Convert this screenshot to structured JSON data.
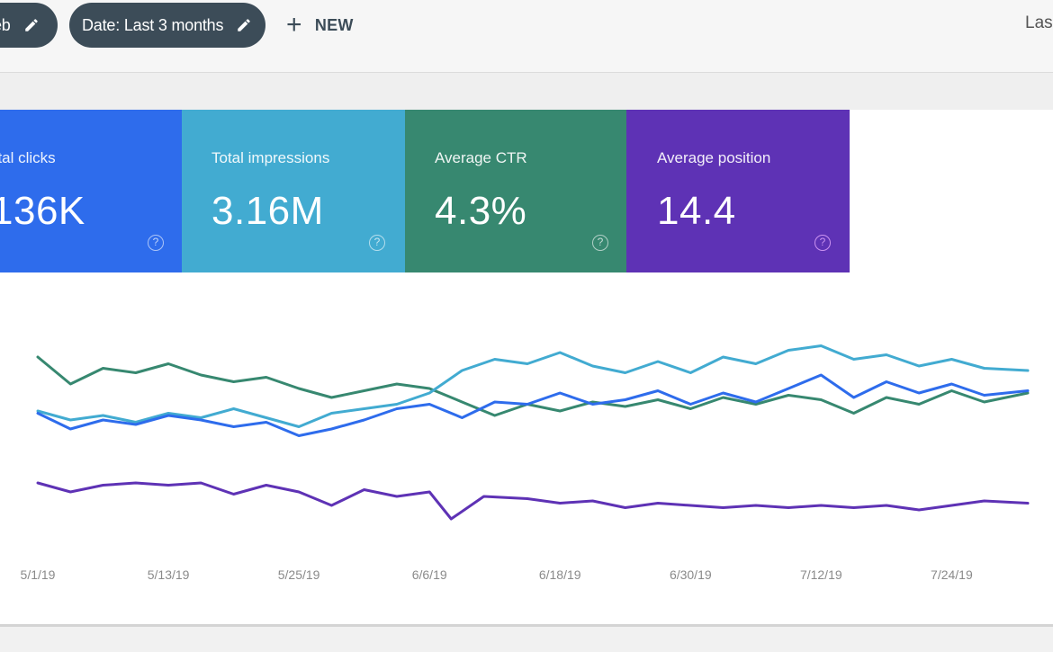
{
  "filters": {
    "search_type_chip": "eb",
    "date_chip": "Date: Last 3 months",
    "new_label": "NEW",
    "right_text": "Las"
  },
  "metrics": {
    "clicks": {
      "label": "otal clicks",
      "value": "136K",
      "help": "?"
    },
    "impressions": {
      "label": "Total impressions",
      "value": "3.16M",
      "help": "?"
    },
    "ctr": {
      "label": "Average CTR",
      "value": "4.3%",
      "help": "?"
    },
    "position": {
      "label": "Average position",
      "value": "14.4",
      "help": "?"
    }
  },
  "colors": {
    "clicks": "#2e6cec",
    "impressions": "#42abd1",
    "ctr": "#378870",
    "position": "#5e32b5",
    "chip_bg": "#3c4c58"
  },
  "chart_data": {
    "type": "line",
    "x_tick_labels": [
      "5/1/19",
      "5/13/19",
      "5/25/19",
      "6/6/19",
      "6/18/19",
      "6/30/19",
      "7/12/19",
      "7/24/19"
    ],
    "x_ticks": [
      "2019-05-01",
      "2019-05-13",
      "2019-05-25",
      "2019-06-06",
      "2019-06-18",
      "2019-06-30",
      "2019-07-12",
      "2019-07-24"
    ],
    "x_range": [
      "2019-05-01",
      "2019-07-31"
    ],
    "y_axis_shown": false,
    "grid": false,
    "series": [
      {
        "metric": "ctr",
        "color": "#378870",
        "points": [
          [
            "2019-05-01",
            78
          ],
          [
            "2019-05-04",
            66
          ],
          [
            "2019-05-07",
            73
          ],
          [
            "2019-05-10",
            71
          ],
          [
            "2019-05-13",
            75
          ],
          [
            "2019-05-16",
            70
          ],
          [
            "2019-05-19",
            67
          ],
          [
            "2019-05-22",
            69
          ],
          [
            "2019-05-25",
            64
          ],
          [
            "2019-05-28",
            60
          ],
          [
            "2019-05-31",
            63
          ],
          [
            "2019-06-03",
            66
          ],
          [
            "2019-06-06",
            64
          ],
          [
            "2019-06-09",
            58
          ],
          [
            "2019-06-12",
            52
          ],
          [
            "2019-06-15",
            57
          ],
          [
            "2019-06-18",
            54
          ],
          [
            "2019-06-21",
            58
          ],
          [
            "2019-06-24",
            56
          ],
          [
            "2019-06-27",
            59
          ],
          [
            "2019-06-30",
            55
          ],
          [
            "2019-07-03",
            60
          ],
          [
            "2019-07-06",
            57
          ],
          [
            "2019-07-09",
            61
          ],
          [
            "2019-07-12",
            59
          ],
          [
            "2019-07-15",
            53
          ],
          [
            "2019-07-18",
            60
          ],
          [
            "2019-07-21",
            57
          ],
          [
            "2019-07-24",
            63
          ],
          [
            "2019-07-27",
            58
          ],
          [
            "2019-07-31",
            62
          ]
        ]
      },
      {
        "metric": "impressions",
        "color": "#42abd1",
        "points": [
          [
            "2019-05-01",
            54
          ],
          [
            "2019-05-04",
            50
          ],
          [
            "2019-05-07",
            52
          ],
          [
            "2019-05-10",
            49
          ],
          [
            "2019-05-13",
            53
          ],
          [
            "2019-05-16",
            51
          ],
          [
            "2019-05-19",
            55
          ],
          [
            "2019-05-22",
            51
          ],
          [
            "2019-05-25",
            47
          ],
          [
            "2019-05-28",
            53
          ],
          [
            "2019-05-31",
            55
          ],
          [
            "2019-06-03",
            57
          ],
          [
            "2019-06-06",
            62
          ],
          [
            "2019-06-09",
            72
          ],
          [
            "2019-06-12",
            77
          ],
          [
            "2019-06-15",
            75
          ],
          [
            "2019-06-18",
            80
          ],
          [
            "2019-06-21",
            74
          ],
          [
            "2019-06-24",
            71
          ],
          [
            "2019-06-27",
            76
          ],
          [
            "2019-06-30",
            71
          ],
          [
            "2019-07-03",
            78
          ],
          [
            "2019-07-06",
            75
          ],
          [
            "2019-07-09",
            81
          ],
          [
            "2019-07-12",
            83
          ],
          [
            "2019-07-15",
            77
          ],
          [
            "2019-07-18",
            79
          ],
          [
            "2019-07-21",
            74
          ],
          [
            "2019-07-24",
            77
          ],
          [
            "2019-07-27",
            73
          ],
          [
            "2019-07-31",
            72
          ]
        ]
      },
      {
        "metric": "clicks",
        "color": "#2e6cec",
        "points": [
          [
            "2019-05-01",
            53
          ],
          [
            "2019-05-04",
            46
          ],
          [
            "2019-05-07",
            50
          ],
          [
            "2019-05-10",
            48
          ],
          [
            "2019-05-13",
            52
          ],
          [
            "2019-05-16",
            50
          ],
          [
            "2019-05-19",
            47
          ],
          [
            "2019-05-22",
            49
          ],
          [
            "2019-05-25",
            43
          ],
          [
            "2019-05-28",
            46
          ],
          [
            "2019-05-31",
            50
          ],
          [
            "2019-06-03",
            55
          ],
          [
            "2019-06-06",
            57
          ],
          [
            "2019-06-09",
            51
          ],
          [
            "2019-06-12",
            58
          ],
          [
            "2019-06-15",
            57
          ],
          [
            "2019-06-18",
            62
          ],
          [
            "2019-06-21",
            57
          ],
          [
            "2019-06-24",
            59
          ],
          [
            "2019-06-27",
            63
          ],
          [
            "2019-06-30",
            57
          ],
          [
            "2019-07-03",
            62
          ],
          [
            "2019-07-06",
            58
          ],
          [
            "2019-07-09",
            64
          ],
          [
            "2019-07-12",
            70
          ],
          [
            "2019-07-15",
            60
          ],
          [
            "2019-07-18",
            67
          ],
          [
            "2019-07-21",
            62
          ],
          [
            "2019-07-24",
            66
          ],
          [
            "2019-07-27",
            61
          ],
          [
            "2019-07-31",
            63
          ]
        ]
      },
      {
        "metric": "position",
        "color": "#5e32b5",
        "points": [
          [
            "2019-05-01",
            22
          ],
          [
            "2019-05-04",
            18
          ],
          [
            "2019-05-07",
            21
          ],
          [
            "2019-05-10",
            22
          ],
          [
            "2019-05-13",
            21
          ],
          [
            "2019-05-16",
            22
          ],
          [
            "2019-05-19",
            17
          ],
          [
            "2019-05-22",
            21
          ],
          [
            "2019-05-25",
            18
          ],
          [
            "2019-05-28",
            12
          ],
          [
            "2019-05-31",
            19
          ],
          [
            "2019-06-03",
            16
          ],
          [
            "2019-06-06",
            18
          ],
          [
            "2019-06-08",
            6
          ],
          [
            "2019-06-11",
            16
          ],
          [
            "2019-06-15",
            15
          ],
          [
            "2019-06-18",
            13
          ],
          [
            "2019-06-21",
            14
          ],
          [
            "2019-06-24",
            11
          ],
          [
            "2019-06-27",
            13
          ],
          [
            "2019-06-30",
            12
          ],
          [
            "2019-07-03",
            11
          ],
          [
            "2019-07-06",
            12
          ],
          [
            "2019-07-09",
            11
          ],
          [
            "2019-07-12",
            12
          ],
          [
            "2019-07-15",
            11
          ],
          [
            "2019-07-18",
            12
          ],
          [
            "2019-07-21",
            10
          ],
          [
            "2019-07-24",
            12
          ],
          [
            "2019-07-27",
            14
          ],
          [
            "2019-07-31",
            13
          ]
        ]
      }
    ]
  }
}
